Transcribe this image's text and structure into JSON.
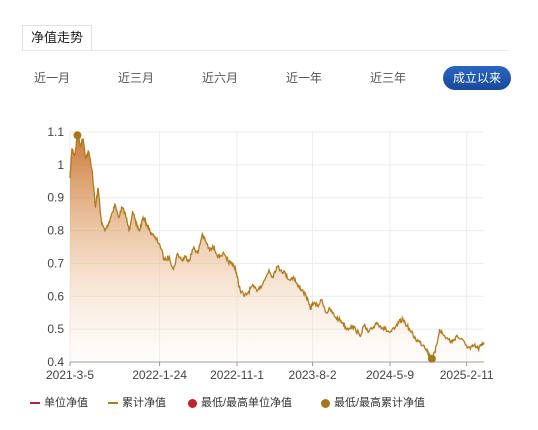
{
  "header": {
    "title": "净值走势"
  },
  "range_tabs": [
    {
      "label": "近一月",
      "active": false
    },
    {
      "label": "近三月",
      "active": false
    },
    {
      "label": "近六月",
      "active": false
    },
    {
      "label": "近一年",
      "active": false
    },
    {
      "label": "近三年",
      "active": false
    },
    {
      "label": "成立以来",
      "active": true
    }
  ],
  "legend": [
    {
      "label": "单位净值",
      "kind": "line",
      "color": "#b5272d"
    },
    {
      "label": "累计净值",
      "kind": "line",
      "color": "#b07a1e"
    },
    {
      "label": "最低/最高单位净值",
      "kind": "dot",
      "color": "#c0212a"
    },
    {
      "label": "最低/最高累计净值",
      "kind": "dot",
      "color": "#a8771a"
    }
  ],
  "chart_data": {
    "type": "area",
    "x_tick_labels": [
      "2021-3-5",
      "2022-1-24",
      "2022-11-1",
      "2023-8-2",
      "2024-5-9",
      "2025-2-11"
    ],
    "y_tick_labels": [
      "0.4",
      "0.5",
      "0.6",
      "0.7",
      "0.8",
      "0.9",
      "1",
      "1.1"
    ],
    "ylim": [
      0.4,
      1.1
    ],
    "xlim": [
      "2021-03-05",
      "2025-04-15"
    ],
    "grid": true,
    "series": [
      {
        "name": "累计净值",
        "color": "#b07a1e",
        "x": [
          "2021-03-05",
          "2021-03-12",
          "2021-03-22",
          "2021-04-01",
          "2021-04-12",
          "2021-04-22",
          "2021-05-01",
          "2021-05-12",
          "2021-05-25",
          "2021-06-05",
          "2021-06-15",
          "2021-06-28",
          "2021-07-10",
          "2021-07-22",
          "2021-08-03",
          "2021-08-15",
          "2021-08-28",
          "2021-09-10",
          "2021-09-22",
          "2021-10-05",
          "2021-10-18",
          "2021-10-30",
          "2021-11-12",
          "2021-11-25",
          "2021-12-08",
          "2021-12-20",
          "2022-01-05",
          "2022-01-24",
          "2022-02-10",
          "2022-03-01",
          "2022-03-15",
          "2022-03-30",
          "2022-04-15",
          "2022-04-28",
          "2022-05-12",
          "2022-05-28",
          "2022-06-12",
          "2022-06-28",
          "2022-07-08",
          "2022-07-25",
          "2022-08-10",
          "2022-08-25",
          "2022-09-10",
          "2022-09-25",
          "2022-10-10",
          "2022-10-25",
          "2022-11-01",
          "2022-11-12",
          "2022-11-28",
          "2022-12-10",
          "2022-12-25",
          "2023-01-10",
          "2023-01-25",
          "2023-02-10",
          "2023-02-25",
          "2023-03-10",
          "2023-03-25",
          "2023-04-10",
          "2023-04-25",
          "2023-05-10",
          "2023-05-25",
          "2023-06-10",
          "2023-06-25",
          "2023-07-10",
          "2023-07-25",
          "2023-08-02",
          "2023-08-20",
          "2023-09-05",
          "2023-09-20",
          "2023-10-05",
          "2023-10-20",
          "2023-11-05",
          "2023-11-20",
          "2023-12-05",
          "2023-12-20",
          "2024-01-05",
          "2024-01-20",
          "2024-02-05",
          "2024-02-20",
          "2024-03-05",
          "2024-03-20",
          "2024-04-05",
          "2024-04-20",
          "2024-05-09",
          "2024-05-25",
          "2024-06-10",
          "2024-06-25",
          "2024-07-10",
          "2024-07-25",
          "2024-08-10",
          "2024-08-25",
          "2024-09-10",
          "2024-09-18",
          "2024-09-28",
          "2024-10-08",
          "2024-10-20",
          "2024-11-05",
          "2024-11-20",
          "2024-12-05",
          "2024-12-20",
          "2025-01-05",
          "2025-01-20",
          "2025-02-11",
          "2025-02-25",
          "2025-03-10",
          "2025-03-25",
          "2025-04-05",
          "2025-04-15"
        ],
        "values": [
          0.96,
          1.05,
          1.03,
          1.09,
          1.06,
          1.08,
          1.02,
          1.04,
          0.98,
          0.87,
          0.93,
          0.82,
          0.8,
          0.82,
          0.85,
          0.88,
          0.84,
          0.87,
          0.85,
          0.8,
          0.86,
          0.82,
          0.8,
          0.84,
          0.82,
          0.8,
          0.78,
          0.76,
          0.71,
          0.72,
          0.68,
          0.73,
          0.71,
          0.72,
          0.71,
          0.75,
          0.73,
          0.79,
          0.77,
          0.74,
          0.75,
          0.72,
          0.73,
          0.71,
          0.7,
          0.69,
          0.66,
          0.62,
          0.6,
          0.61,
          0.63,
          0.62,
          0.63,
          0.65,
          0.68,
          0.66,
          0.69,
          0.68,
          0.67,
          0.65,
          0.66,
          0.63,
          0.62,
          0.6,
          0.56,
          0.58,
          0.57,
          0.59,
          0.55,
          0.56,
          0.54,
          0.53,
          0.52,
          0.5,
          0.51,
          0.5,
          0.48,
          0.51,
          0.49,
          0.5,
          0.52,
          0.51,
          0.5,
          0.49,
          0.5,
          0.52,
          0.53,
          0.51,
          0.49,
          0.47,
          0.46,
          0.45,
          0.44,
          0.42,
          0.41,
          0.43,
          0.5,
          0.48,
          0.47,
          0.46,
          0.48,
          0.47,
          0.45,
          0.44,
          0.45,
          0.44,
          0.45,
          0.46
        ]
      }
    ],
    "markers": [
      {
        "x": "2021-04-01",
        "y": 1.09,
        "label": "max"
      },
      {
        "x": "2024-10-08",
        "y": 0.41,
        "label": "min"
      }
    ]
  }
}
